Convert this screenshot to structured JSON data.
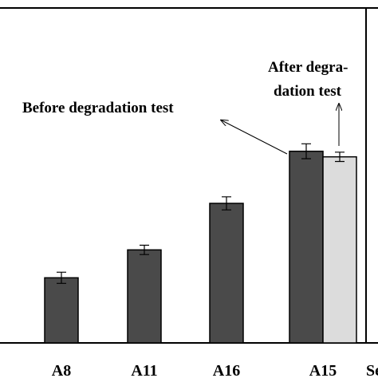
{
  "chart_data": {
    "type": "bar",
    "categories": [
      "A8",
      "A11",
      "A16",
      "A15",
      "Se"
    ],
    "series": [
      {
        "values": [
          35,
          50,
          75,
          103,
          null
        ],
        "errors": [
          3,
          2.5,
          3.5,
          4,
          null
        ]
      },
      {
        "values": [
          null,
          null,
          null,
          100,
          null
        ],
        "errors": [
          null,
          null,
          null,
          2.5,
          null
        ]
      }
    ],
    "ylim": [
      0,
      180
    ],
    "colors": {
      "before": "#4a4a4a",
      "after": "#dcdcdc",
      "axis": "#000000"
    },
    "annotations": {
      "before": "Before degradation test",
      "after_line1": "After degra-",
      "after_line2": "dation test"
    }
  }
}
